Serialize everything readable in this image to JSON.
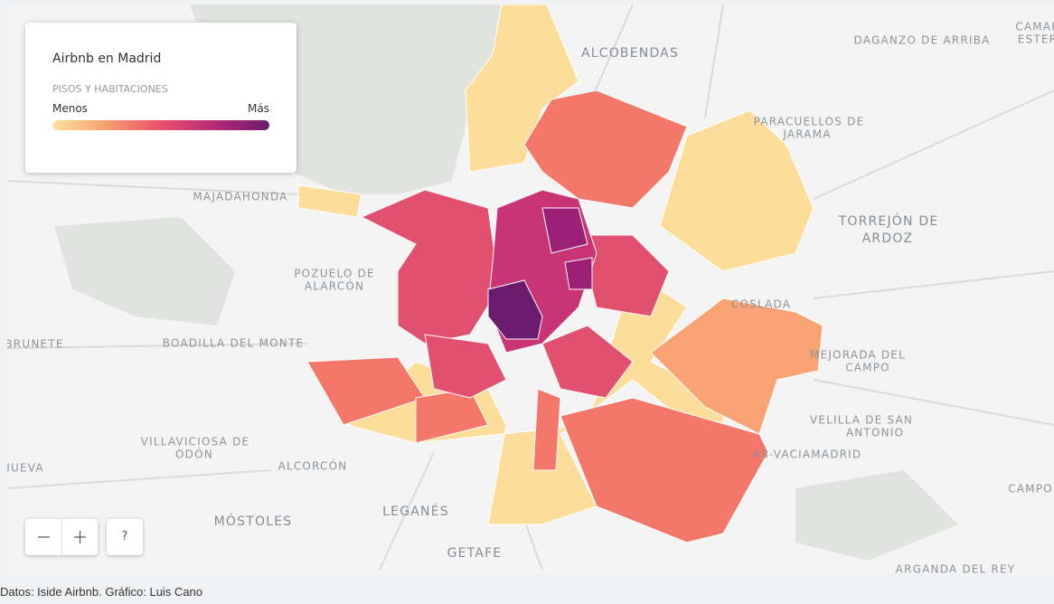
{
  "legend": {
    "title": "Airbnb en Madrid",
    "subtitle": "PISOS Y HABITACIONES",
    "low": "Menos",
    "high": "Más"
  },
  "places": [
    "ALCOBENDAS",
    "DAGANZO DE ARRIBA",
    "CAMAR",
    "ESTER",
    "PARACUELLOS DE",
    "JARAMA",
    "MAJADAHONDA",
    "TORREJÓN DE",
    "ARDOZ",
    "POZUELO DE",
    "ALARCÓN",
    "COSLADA",
    "BRUNETE",
    "BOADILLA DEL MONTE",
    "MEJORADA DEL",
    "CAMPO",
    "VELILLA DE SAN",
    "ANTONIO",
    "VILLAVICIOSA DE",
    "ODÓN",
    "AS-VACIAMADRID",
    "ALCORCÓN",
    "IUEVA",
    "CAMPO",
    "MÓSTOLES",
    "LEGANÉS",
    "GETAFE",
    "ARGANDA DEL REY"
  ],
  "help_button": "?",
  "footer": "Datos: Iside Airbnb. Gráfico: Luis Cano"
}
